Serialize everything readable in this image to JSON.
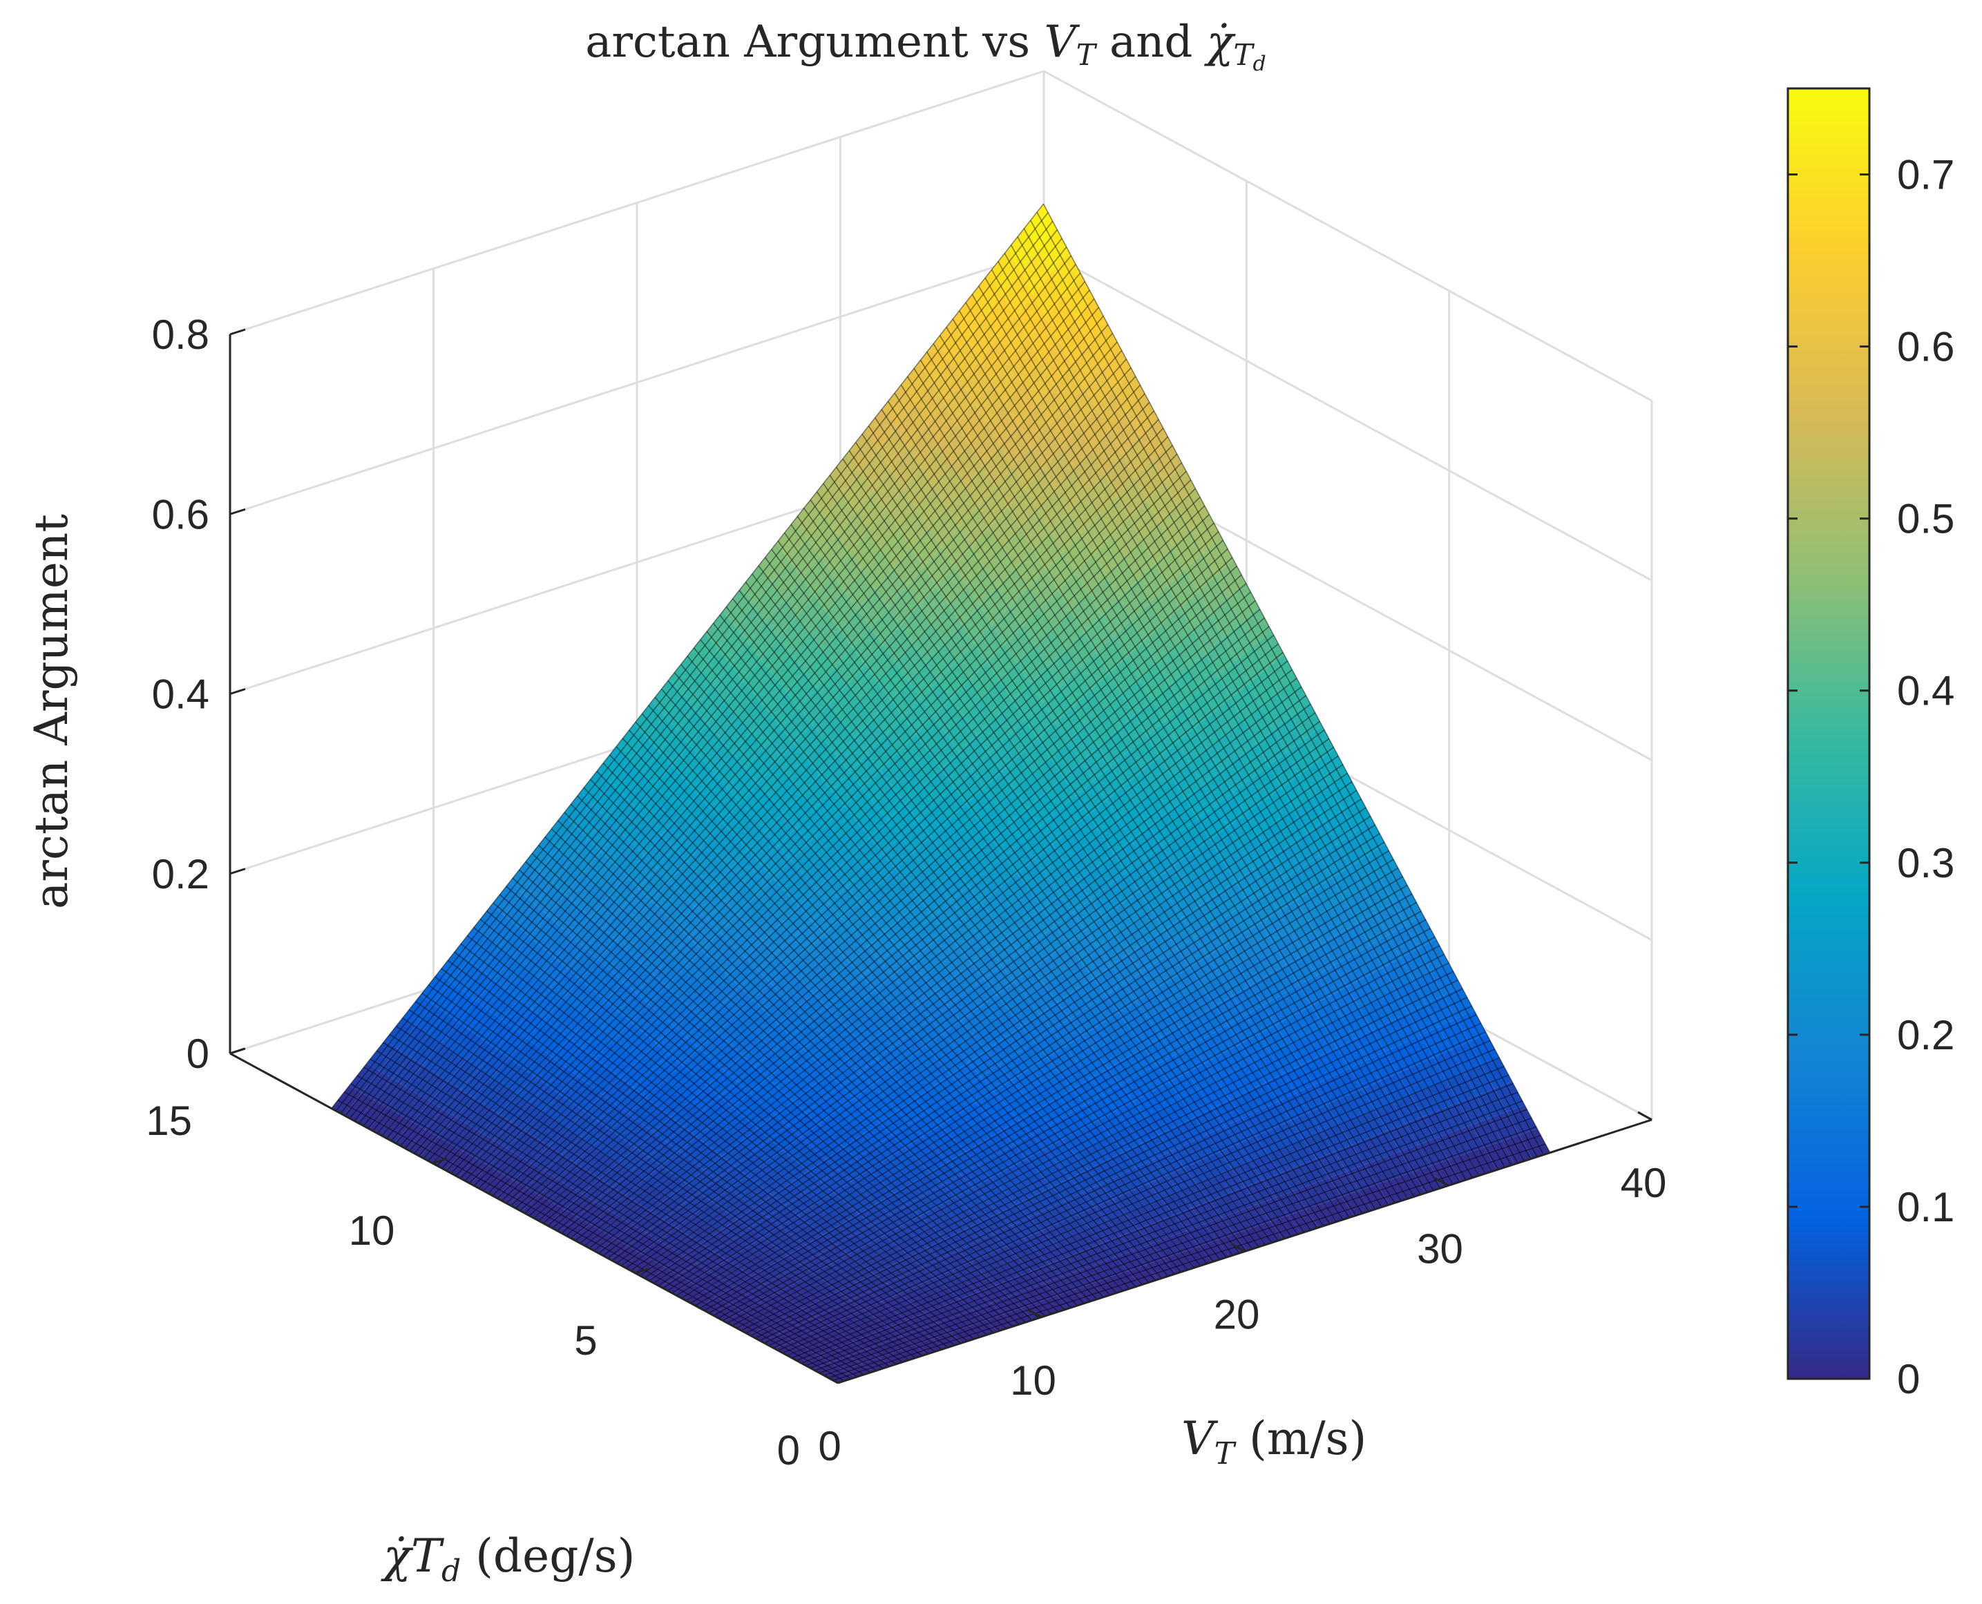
{
  "chart_data": {
    "type": "surface",
    "title": "arctan Argument vs V_T and χ̇_{T_d}",
    "title_parts": {
      "main": "arctan Argument vs ",
      "v": "V",
      "v_sub": "T",
      "mid": " and ",
      "chi": "χ̇",
      "chi_sub": "T",
      "chi_subsub": "d"
    },
    "zlabel": "arctan Argument",
    "xlabel": "V_T (m/s)",
    "xlabel_parts": {
      "v": "V",
      "v_sub": "T",
      "unit": " (m/s)"
    },
    "ylabel": "χ̇T_d (deg/s)",
    "ylabel_parts": {
      "chi": "χ̇",
      "t": "T",
      "t_sub": "d",
      "unit": " (deg/s)"
    },
    "x_ticks": [
      "0",
      "10",
      "20",
      "30",
      "40"
    ],
    "y_ticks": [
      "0",
      "5",
      "10",
      "15"
    ],
    "z_ticks": [
      "0",
      "0.2",
      "0.4",
      "0.6",
      "0.8"
    ],
    "colorbar_ticks": [
      "0",
      "0.1",
      "0.2",
      "0.3",
      "0.4",
      "0.5",
      "0.6",
      "0.7"
    ],
    "xlim": [
      0,
      40
    ],
    "ylim": [
      0,
      15
    ],
    "zlim": [
      0,
      0.8
    ],
    "clim": [
      0,
      0.75
    ],
    "colormap": "parula",
    "surface": {
      "x_range": [
        0,
        35
      ],
      "y_range": [
        0,
        12.5
      ],
      "relation": "z proportional to x*y",
      "z_at_max": 0.75
    },
    "grid": true,
    "colorbar_colors": [
      "#352a87",
      "#0363e1",
      "#1485d4",
      "#06a7c6",
      "#38b99e",
      "#92bf73",
      "#d9ba56",
      "#fcce2e",
      "#f9fb0e"
    ]
  }
}
